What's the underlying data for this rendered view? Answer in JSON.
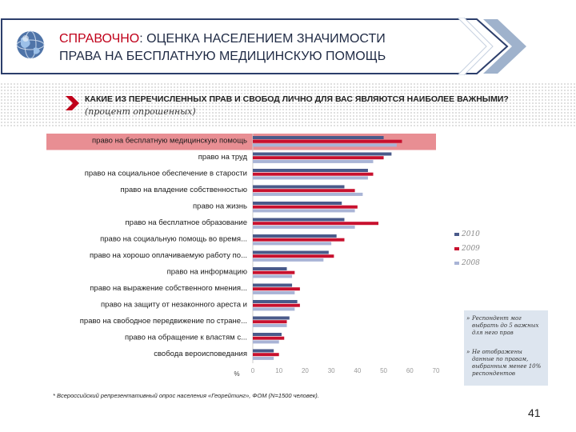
{
  "header": {
    "title_lead": "СПРАВОЧНО",
    "title_line1_rest": ": ОЦЕНКА НАСЕЛЕНИЕМ ЗНАЧИМОСТИ",
    "title_line2": "ПРАВА НА БЕСПЛАТНУЮ МЕДИЦИНСКУЮ ПОМОЩЬ"
  },
  "question": "КАКИЕ ИЗ ПЕРЕЧИСЛЕННЫХ ПРАВ И СВОБОД ЛИЧНО ДЛЯ ВАС ЯВЛЯЮТСЯ НАИБОЛЕЕ ВАЖНЫМИ?",
  "subtitle": "(процент опрошенных)",
  "notes": [
    "Респондент мог выбрать до 5 важных для него прав",
    "Не отображены данные по правам, выбранным менее 10% респондентов"
  ],
  "footnote": "* Всероссийский репрезентативный опрос населения «Георейтинг», ФОМ (N=1500 человек).",
  "page_number": "41",
  "colors": {
    "2010": "#4a5a8a",
    "2009": "#c8102e",
    "2008": "#a9b4d6",
    "highlight": "#e88e93",
    "accent": "#c0001a",
    "axis_text": "#999999"
  },
  "chart_data": {
    "type": "bar",
    "orientation": "horizontal",
    "title": "",
    "xlabel": "%",
    "ylabel": "",
    "xlim": [
      0,
      70
    ],
    "xticks": [
      "0",
      "10",
      "20",
      "30",
      "40",
      "50",
      "60",
      "70"
    ],
    "legend_position": "right",
    "highlighted_category": "право на бесплатную медицинскую помощь",
    "categories": [
      "право на бесплатную медицинскую помощь",
      "право на труд",
      "право на социальное обеспечение в старости",
      "право на владение собственностью",
      "право на жизнь",
      "право на бесплатное образование",
      "право на социальную помощь во время...",
      "право на хорошо оплачиваемую работу по...",
      "право на информацию",
      "право на выражение собственного мнения...",
      "право на защиту от незаконного ареста и",
      "право на свободное передвижение по стране...",
      "право на обращение к властям с...",
      "свобода вероисповедания"
    ],
    "series": [
      {
        "name": "2010",
        "values": [
          50,
          53,
          44,
          35,
          34,
          35,
          32,
          29,
          13,
          15,
          17,
          14,
          11,
          8
        ]
      },
      {
        "name": "2009",
        "values": [
          57,
          50,
          46,
          39,
          40,
          48,
          35,
          31,
          16,
          18,
          18,
          13,
          12,
          10
        ]
      },
      {
        "name": "2008",
        "values": [
          55,
          46,
          44,
          42,
          39,
          39,
          30,
          27,
          15,
          16,
          16,
          13,
          10,
          8
        ]
      }
    ]
  }
}
